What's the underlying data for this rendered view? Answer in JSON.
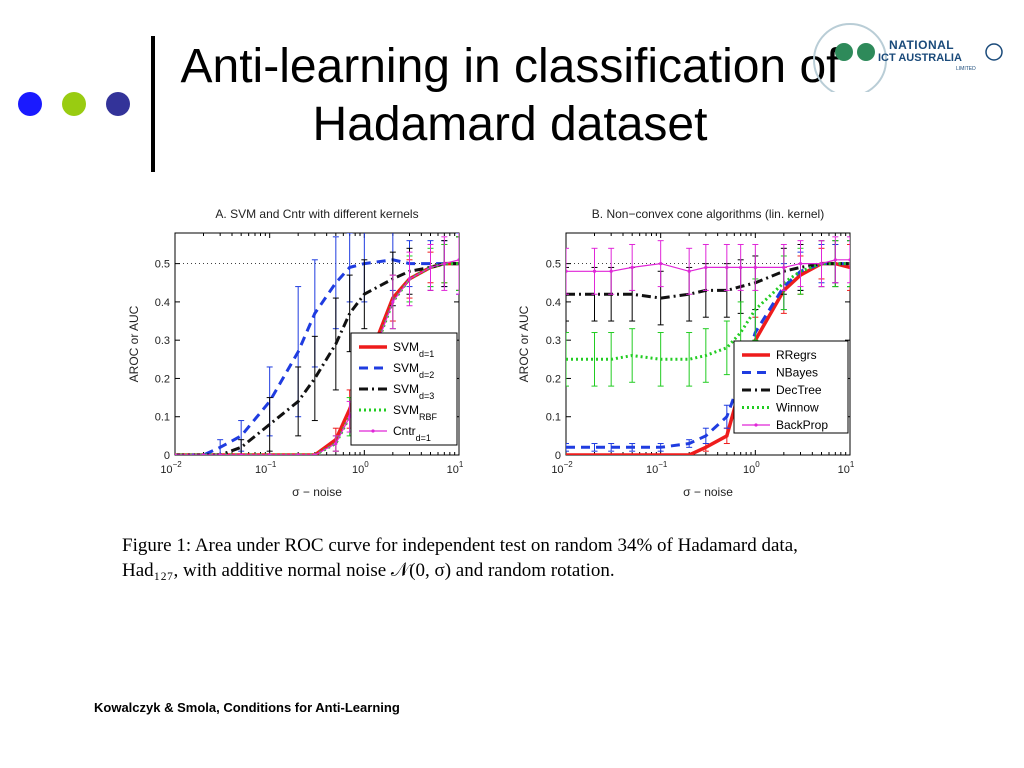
{
  "slide": {
    "title_line1": "Anti-learning in classification of",
    "title_line2": "Hadamard dataset",
    "caption_line1": "Figure 1:  Area under ROC curve for independent test on random 34% of Hadamard data,",
    "caption_line2": "Had₁₂₇, with additive normal noise 𝒩(0, σ) and random rotation.",
    "footer": "Kowalczyk & Smola, Conditions for Anti-Learning",
    "bullet_colors": [
      "#1a1aff",
      "#99cc11",
      "#333399"
    ],
    "logo": {
      "name": "NATIONAL",
      "sub": "ICT AUSTRALIA",
      "small": "LIMITED"
    }
  },
  "chart_data": [
    {
      "type": "line",
      "title": "A. SVM and Cntr with different kernels",
      "xlabel": "σ −  noise",
      "ylabel": "AROC or AUC",
      "xscale": "log",
      "xlim": [
        0.01,
        10
      ],
      "ylim": [
        0,
        0.58
      ],
      "x_ticks": [
        0.01,
        0.1,
        1,
        10
      ],
      "x_tick_labels": [
        [
          "10",
          "−2"
        ],
        [
          "10",
          "−1"
        ],
        [
          "10",
          "0"
        ],
        [
          "10",
          "1"
        ]
      ],
      "y_ticks": [
        0,
        0.1,
        0.2,
        0.3,
        0.4,
        0.5
      ],
      "y_tick_labels": [
        "0",
        "0.1",
        "0.2",
        "0.3",
        "0.4",
        "0.5"
      ],
      "reference_line": 0.5,
      "legend_position": "lower-right",
      "x": [
        0.01,
        0.02,
        0.03,
        0.05,
        0.1,
        0.2,
        0.3,
        0.5,
        0.7,
        1,
        2,
        3,
        5,
        7,
        10
      ],
      "series": [
        {
          "name": "SVM",
          "subscript": "d=1",
          "color": "#ee1c1c",
          "dash": "",
          "width": 3.5,
          "marker": false,
          "values": [
            0,
            0,
            0,
            0,
            0,
            0,
            0,
            0.04,
            0.12,
            0.22,
            0.41,
            0.46,
            0.49,
            0.5,
            0.5
          ],
          "err": [
            0,
            0,
            0,
            0,
            0,
            0,
            0,
            0.03,
            0.05,
            0.07,
            0.06,
            0.05,
            0.04,
            0.05,
            0.07
          ]
        },
        {
          "name": "SVM",
          "subscript": "d=2",
          "color": "#1f3ce0",
          "dash": "9,6",
          "width": 3,
          "marker": false,
          "values": [
            0,
            0,
            0.02,
            0.05,
            0.14,
            0.27,
            0.37,
            0.45,
            0.49,
            0.5,
            0.51,
            0.5,
            0.5,
            0.5,
            0.5
          ],
          "err": [
            0,
            0,
            0.02,
            0.04,
            0.09,
            0.17,
            0.14,
            0.12,
            0.09,
            0.1,
            0.08,
            0.06,
            0.06,
            0.06,
            0.08
          ]
        },
        {
          "name": "SVM",
          "subscript": "d=3",
          "color": "#111111",
          "dash": "9,4,2,4",
          "width": 3,
          "marker": false,
          "values": [
            0,
            0,
            0,
            0.02,
            0.08,
            0.14,
            0.2,
            0.29,
            0.37,
            0.42,
            0.46,
            0.48,
            0.49,
            0.5,
            0.5
          ],
          "err": [
            0,
            0,
            0,
            0.02,
            0.07,
            0.09,
            0.11,
            0.12,
            0.1,
            0.09,
            0.07,
            0.06,
            0.06,
            0.06,
            0.07
          ]
        },
        {
          "name": "SVM",
          "subscript": "RBF",
          "color": "#22cc22",
          "dash": "2,3",
          "width": 3,
          "marker": false,
          "values": [
            0,
            0,
            0,
            0,
            0,
            0,
            0,
            0.03,
            0.1,
            0.2,
            0.4,
            0.46,
            0.49,
            0.5,
            0.5
          ],
          "err": [
            0,
            0,
            0,
            0,
            0,
            0,
            0,
            0.02,
            0.05,
            0.06,
            0.07,
            0.06,
            0.05,
            0.05,
            0.07
          ]
        },
        {
          "name": "Cntr",
          "subscript": "d=1",
          "color": "#e026d8",
          "dash": "",
          "width": 1.2,
          "marker": true,
          "values": [
            0,
            0,
            0,
            0,
            0,
            0,
            0,
            0.03,
            0.1,
            0.2,
            0.4,
            0.46,
            0.49,
            0.5,
            0.51
          ],
          "err": [
            0,
            0,
            0,
            0,
            0,
            0,
            0,
            0.02,
            0.04,
            0.06,
            0.07,
            0.07,
            0.06,
            0.07,
            0.09
          ]
        }
      ]
    },
    {
      "type": "line",
      "title": "B. Non−convex cone algorithms (lin. kernel)",
      "xlabel": "σ −  noise",
      "ylabel": "AROC or AUC",
      "xscale": "log",
      "xlim": [
        0.01,
        10
      ],
      "ylim": [
        0,
        0.58
      ],
      "x_ticks": [
        0.01,
        0.1,
        1,
        10
      ],
      "x_tick_labels": [
        [
          "10",
          "−2"
        ],
        [
          "10",
          "−1"
        ],
        [
          "10",
          "0"
        ],
        [
          "10",
          "1"
        ]
      ],
      "y_ticks": [
        0,
        0.1,
        0.2,
        0.3,
        0.4,
        0.5
      ],
      "y_tick_labels": [
        "0",
        "0.1",
        "0.2",
        "0.3",
        "0.4",
        "0.5"
      ],
      "reference_line": 0.5,
      "legend_position": "lower-right",
      "x": [
        0.01,
        0.02,
        0.03,
        0.05,
        0.1,
        0.2,
        0.3,
        0.5,
        0.7,
        1,
        2,
        3,
        5,
        7,
        10
      ],
      "series": [
        {
          "name": "RRegrs",
          "color": "#ee1c1c",
          "dash": "",
          "width": 3.5,
          "marker": false,
          "values": [
            0,
            0,
            0,
            0,
            0,
            0,
            0.02,
            0.05,
            0.18,
            0.3,
            0.43,
            0.47,
            0.5,
            0.5,
            0.49
          ],
          "err": [
            0,
            0,
            0,
            0,
            0,
            0,
            0.01,
            0.02,
            0.05,
            0.06,
            0.06,
            0.05,
            0.04,
            0.05,
            0.06
          ]
        },
        {
          "name": "NBayes",
          "color": "#1f3ce0",
          "dash": "9,6",
          "width": 3,
          "marker": false,
          "values": [
            0.02,
            0.02,
            0.02,
            0.02,
            0.02,
            0.03,
            0.05,
            0.1,
            0.2,
            0.32,
            0.44,
            0.48,
            0.5,
            0.5,
            0.5
          ],
          "err": [
            0.01,
            0.01,
            0.01,
            0.01,
            0.01,
            0.01,
            0.02,
            0.03,
            0.05,
            0.06,
            0.06,
            0.05,
            0.05,
            0.05,
            0.06
          ]
        },
        {
          "name": "DecTree",
          "color": "#111111",
          "dash": "9,4,2,4",
          "width": 3,
          "marker": false,
          "values": [
            0.42,
            0.42,
            0.42,
            0.42,
            0.41,
            0.42,
            0.43,
            0.43,
            0.44,
            0.45,
            0.48,
            0.49,
            0.5,
            0.5,
            0.5
          ],
          "err": [
            0.07,
            0.07,
            0.07,
            0.07,
            0.07,
            0.07,
            0.07,
            0.07,
            0.07,
            0.07,
            0.06,
            0.06,
            0.06,
            0.06,
            0.06
          ]
        },
        {
          "name": "Winnow",
          "color": "#22cc22",
          "dash": "2,3",
          "width": 3,
          "marker": false,
          "values": [
            0.25,
            0.25,
            0.25,
            0.26,
            0.25,
            0.25,
            0.26,
            0.28,
            0.32,
            0.38,
            0.45,
            0.48,
            0.5,
            0.5,
            0.5
          ],
          "err": [
            0.07,
            0.07,
            0.07,
            0.07,
            0.07,
            0.07,
            0.07,
            0.07,
            0.08,
            0.08,
            0.07,
            0.06,
            0.06,
            0.06,
            0.06
          ]
        },
        {
          "name": "BackProp",
          "color": "#e026d8",
          "dash": "",
          "width": 1.2,
          "marker": true,
          "values": [
            0.48,
            0.48,
            0.48,
            0.49,
            0.5,
            0.48,
            0.49,
            0.49,
            0.49,
            0.49,
            0.49,
            0.5,
            0.5,
            0.51,
            0.51
          ],
          "err": [
            0.06,
            0.06,
            0.06,
            0.06,
            0.06,
            0.06,
            0.06,
            0.06,
            0.06,
            0.06,
            0.06,
            0.06,
            0.06,
            0.06,
            0.06
          ]
        }
      ]
    }
  ]
}
